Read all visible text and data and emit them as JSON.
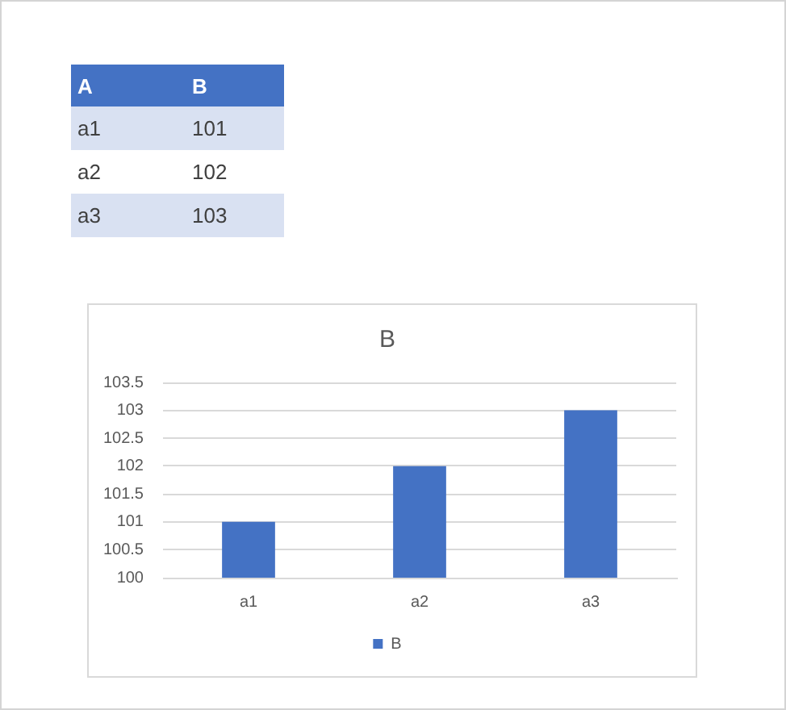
{
  "chart_data": [
    {
      "type": "other",
      "annotations": [
        "A"
      ],
      "categories": [
        "a1",
        "a2",
        "a3"
      ],
      "series": [
        {
          "name": "B",
          "values": [
            101,
            102,
            103
          ]
        }
      ],
      "data_labels": true
    },
    {
      "type": "bar",
      "title": "B",
      "categories": [
        "a1",
        "a2",
        "a3"
      ],
      "series": [
        {
          "name": "B",
          "color": "#4472c4",
          "values": [
            101,
            102,
            103
          ]
        }
      ],
      "ylim": [
        100,
        103.5
      ],
      "yticks": [
        100,
        100.5,
        101,
        101.5,
        102,
        102.5,
        103,
        103.5
      ],
      "grid": "y",
      "legend": "bottom"
    }
  ]
}
